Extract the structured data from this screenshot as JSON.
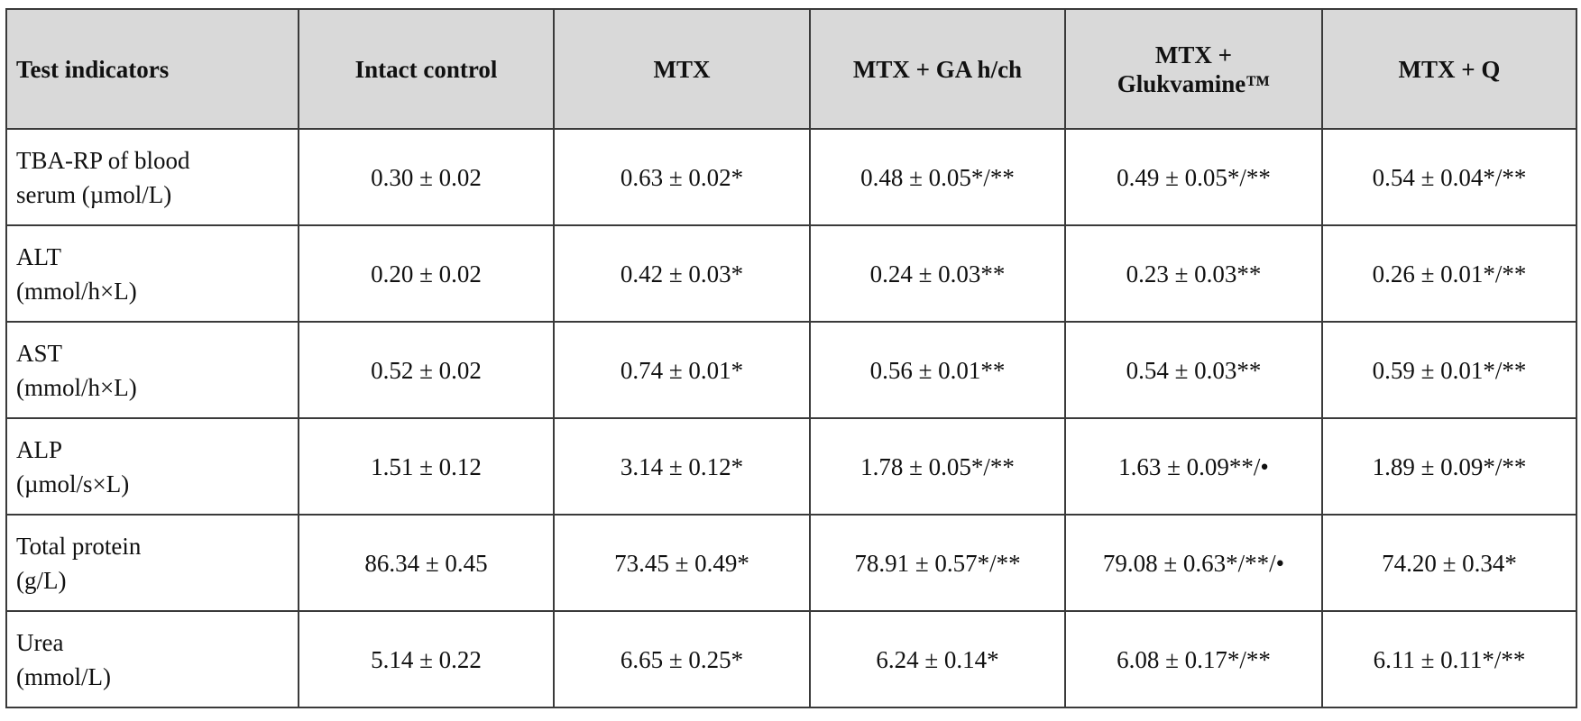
{
  "table": {
    "header": [
      [
        "Test indicators"
      ],
      [
        "Intact control"
      ],
      [
        "MTX"
      ],
      [
        "MTX + GA h/ch"
      ],
      [
        "MTX +",
        "Glukvamine™"
      ],
      [
        "MTX + Q"
      ]
    ],
    "rows": [
      {
        "label": [
          "TBA-RP of blood",
          "serum (µmol/L)"
        ],
        "cells": [
          "0.30 ± 0.02",
          "0.63 ± 0.02*",
          "0.48 ± 0.05*/**",
          "0.49 ± 0.05*/**",
          "0.54 ± 0.04*/**"
        ]
      },
      {
        "label": [
          "ALT",
          "(mmol/h×L)"
        ],
        "cells": [
          "0.20 ± 0.02",
          "0.42 ± 0.03*",
          "0.24 ± 0.03**",
          "0.23 ± 0.03**",
          "0.26 ± 0.01*/**"
        ]
      },
      {
        "label": [
          "AST",
          "(mmol/h×L)"
        ],
        "cells": [
          "0.52 ± 0.02",
          "0.74 ± 0.01*",
          "0.56 ± 0.01**",
          "0.54 ± 0.03**",
          "0.59 ± 0.01*/**"
        ]
      },
      {
        "label": [
          "ALP",
          "(µmol/s×L)"
        ],
        "cells": [
          "1.51 ± 0.12",
          "3.14 ± 0.12*",
          "1.78 ± 0.05*/**",
          "1.63 ± 0.09**/•",
          "1.89 ± 0.09*/**"
        ]
      },
      {
        "label": [
          "Total protein",
          "(g/L)"
        ],
        "cells": [
          "86.34 ± 0.45",
          "73.45 ± 0.49*",
          "78.91 ± 0.57*/**",
          "79.08 ± 0.63*/**/•",
          "74.20 ± 0.34*"
        ]
      },
      {
        "label": [
          "Urea",
          "(mmol/L)"
        ],
        "cells": [
          "5.14 ± 0.22",
          "6.65 ± 0.25*",
          "6.24 ± 0.14*",
          "6.08 ± 0.17*/**",
          "6.11 ± 0.11*/**"
        ]
      }
    ]
  }
}
